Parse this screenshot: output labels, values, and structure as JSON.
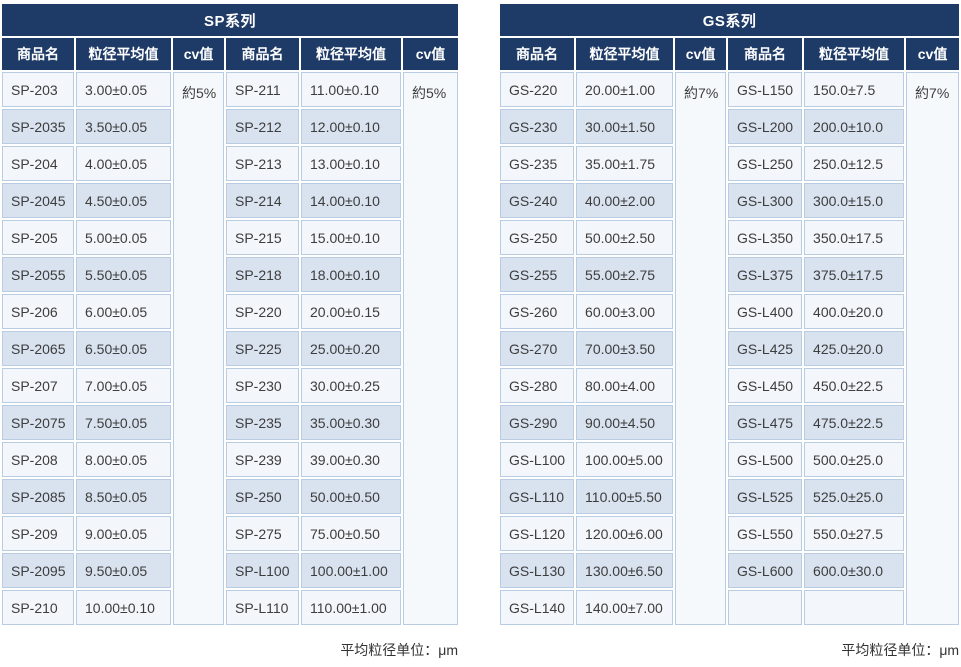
{
  "colors": {
    "header_bg": "#1e3a66",
    "header_text": "#ffffff",
    "row_light": "#f3f6fa",
    "row_alt": "#d9e2ef",
    "cell_border": "#b9cce1",
    "body_text": "#3d3d3d"
  },
  "tables": [
    {
      "title": "SP系列",
      "columns": [
        "商品名",
        "粒径平均值",
        "cv值",
        "商品名",
        "粒径平均值",
        "cv值"
      ],
      "unit_note": "平均粒径单位：μm",
      "groups": [
        {
          "cv": "約5%",
          "rows": [
            [
              "SP-203",
              "3.00±0.05"
            ],
            [
              "SP-2035",
              "3.50±0.05"
            ],
            [
              "SP-204",
              "4.00±0.05"
            ],
            [
              "SP-2045",
              "4.50±0.05"
            ],
            [
              "SP-205",
              "5.00±0.05"
            ],
            [
              "SP-2055",
              "5.50±0.05"
            ],
            [
              "SP-206",
              "6.00±0.05"
            ],
            [
              "SP-2065",
              "6.50±0.05"
            ],
            [
              "SP-207",
              "7.00±0.05"
            ],
            [
              "SP-2075",
              "7.50±0.05"
            ],
            [
              "SP-208",
              "8.00±0.05"
            ],
            [
              "SP-2085",
              "8.50±0.05"
            ],
            [
              "SP-209",
              "9.00±0.05"
            ],
            [
              "SP-2095",
              "9.50±0.05"
            ],
            [
              "SP-210",
              "10.00±0.10"
            ]
          ]
        },
        {
          "cv": "約5%",
          "rows": [
            [
              "SP-211",
              "11.00±0.10"
            ],
            [
              "SP-212",
              "12.00±0.10"
            ],
            [
              "SP-213",
              "13.00±0.10"
            ],
            [
              "SP-214",
              "14.00±0.10"
            ],
            [
              "SP-215",
              "15.00±0.10"
            ],
            [
              "SP-218",
              "18.00±0.10"
            ],
            [
              "SP-220",
              "20.00±0.15"
            ],
            [
              "SP-225",
              "25.00±0.20"
            ],
            [
              "SP-230",
              "30.00±0.25"
            ],
            [
              "SP-235",
              "35.00±0.30"
            ],
            [
              "SP-239",
              "39.00±0.30"
            ],
            [
              "SP-250",
              "50.00±0.50"
            ],
            [
              "SP-275",
              "75.00±0.50"
            ],
            [
              "SP-L100",
              "100.00±1.00"
            ],
            [
              "SP-L110",
              "110.00±1.00"
            ]
          ]
        }
      ]
    },
    {
      "title": "GS系列",
      "columns": [
        "商品名",
        "粒径平均值",
        "cv值",
        "商品名",
        "粒径平均值",
        "cv值"
      ],
      "unit_note": "平均粒径单位：μm",
      "groups": [
        {
          "cv": "約7%",
          "rows": [
            [
              "GS-220",
              "20.00±1.00"
            ],
            [
              "GS-230",
              "30.00±1.50"
            ],
            [
              "GS-235",
              "35.00±1.75"
            ],
            [
              "GS-240",
              "40.00±2.00"
            ],
            [
              "GS-250",
              "50.00±2.50"
            ],
            [
              "GS-255",
              "55.00±2.75"
            ],
            [
              "GS-260",
              "60.00±3.00"
            ],
            [
              "GS-270",
              "70.00±3.50"
            ],
            [
              "GS-280",
              "80.00±4.00"
            ],
            [
              "GS-290",
              "90.00±4.50"
            ],
            [
              "GS-L100",
              "100.00±5.00"
            ],
            [
              "GS-L110",
              "110.00±5.50"
            ],
            [
              "GS-L120",
              "120.00±6.00"
            ],
            [
              "GS-L130",
              "130.00±6.50"
            ],
            [
              "GS-L140",
              "140.00±7.00"
            ]
          ]
        },
        {
          "cv": "約7%",
          "rows": [
            [
              "GS-L150",
              "150.0±7.5"
            ],
            [
              "GS-L200",
              "200.0±10.0"
            ],
            [
              "GS-L250",
              "250.0±12.5"
            ],
            [
              "GS-L300",
              "300.0±15.0"
            ],
            [
              "GS-L350",
              "350.0±17.5"
            ],
            [
              "GS-L375",
              "375.0±17.5"
            ],
            [
              "GS-L400",
              "400.0±20.0"
            ],
            [
              "GS-L425",
              "425.0±20.0"
            ],
            [
              "GS-L450",
              "450.0±22.5"
            ],
            [
              "GS-L475",
              "475.0±22.5"
            ],
            [
              "GS-L500",
              "500.0±25.0"
            ],
            [
              "GS-L525",
              "525.0±25.0"
            ],
            [
              "GS-L550",
              "550.0±27.5"
            ],
            [
              "GS-L600",
              "600.0±30.0"
            ],
            [
              "",
              ""
            ]
          ]
        }
      ]
    }
  ]
}
